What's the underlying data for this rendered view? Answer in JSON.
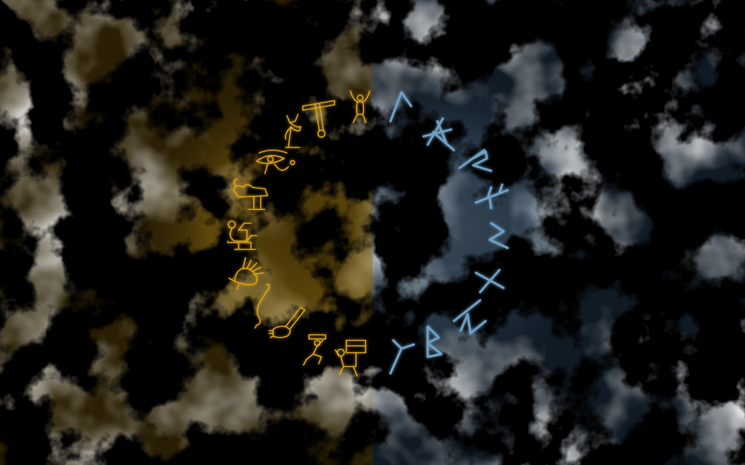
{
  "scene": {
    "left_color": "#d9a21c",
    "right_color": "#6f9fc3",
    "left_glow": "#e8b528",
    "right_glow": "#8fb6d6"
  },
  "hieroglyphs": [
    "kneeling-figure-arms-raised-icon",
    "t-shaped-tool-icon",
    "jackal-head-standard-icon",
    "eye-of-horus-icon",
    "ram-on-pedestal-icon",
    "seated-figure-icon",
    "crested-bird-icon",
    "serpent-staff-icon",
    "hand-with-arm-icon",
    "kneeling-figure-offering-icon",
    "figure-carrying-chest-icon"
  ],
  "runes": [
    "kaun-rune-icon",
    "othala-rune-icon",
    "raidho-rune-icon",
    "ansuz-rune-icon",
    "sowilo-rune-icon",
    "gebo-rune-icon",
    "ehwaz-rune-icon",
    "berkano-rune-icon",
    "algiz-rune-icon"
  ]
}
